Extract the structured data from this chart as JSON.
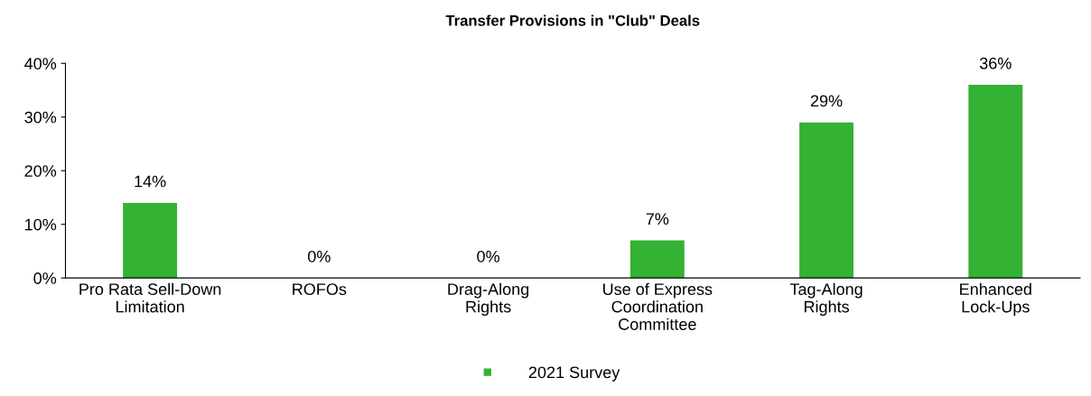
{
  "chart_data": {
    "type": "bar",
    "title": "Transfer Provisions in \"Club\" Deals",
    "categories": [
      "Pro Rata Sell-Down\nLimitation",
      "ROFOs",
      "Drag-Along\nRights",
      "Use of Express\nCoordination\nCommittee",
      "Tag-Along\nRights",
      "Enhanced\nLock-Ups"
    ],
    "series": [
      {
        "name": "2021 Survey",
        "color": "#33b233",
        "values": [
          14,
          0,
          0,
          7,
          29,
          36
        ],
        "value_labels": [
          "14%",
          "0%",
          "0%",
          "7%",
          "29%",
          "36%"
        ]
      }
    ],
    "ylim": [
      0,
      40
    ],
    "yticks": [
      {
        "value": 0,
        "label": "0%"
      },
      {
        "value": 10,
        "label": "10%"
      },
      {
        "value": 20,
        "label": "20%"
      },
      {
        "value": 30,
        "label": "30%"
      },
      {
        "value": 40,
        "label": "40%"
      }
    ],
    "grid": false,
    "legend": "bottom"
  }
}
